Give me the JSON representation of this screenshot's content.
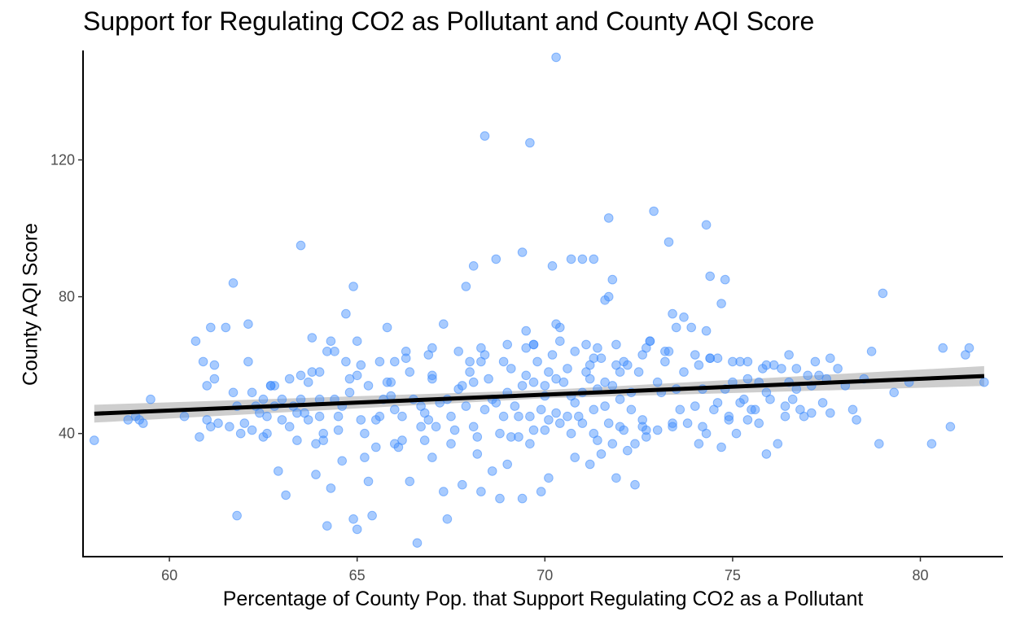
{
  "chart_data": {
    "type": "scatter",
    "title": "Support for Regulating CO2 as Pollutant and County AQI Score",
    "xlabel": "Percentage of County Pop. that Support Regulating CO2 as a Pollutant",
    "ylabel": "County AQI Score",
    "xlim": [
      57.7,
      82.2
    ],
    "ylim": [
      4,
      152
    ],
    "xticks": [
      60,
      65,
      70,
      75,
      80
    ],
    "yticks": [
      40,
      80,
      120
    ],
    "grid": false,
    "point_color": "#3d8bfd",
    "trend_color": "#000000",
    "band_color": "#bdbdbd",
    "trend_line": {
      "x": [
        58.0,
        81.7
      ],
      "y": [
        45.8,
        56.8
      ]
    },
    "confidence_band": {
      "x": [
        58.0,
        70.0,
        81.7
      ],
      "lower": [
        43.2,
        50.3,
        53.9
      ],
      "upper": [
        48.4,
        52.7,
        59.7
      ]
    },
    "points": [
      [
        58.0,
        38
      ],
      [
        58.9,
        44
      ],
      [
        59.1,
        45
      ],
      [
        59.2,
        44
      ],
      [
        59.3,
        43
      ],
      [
        59.5,
        50
      ],
      [
        60.4,
        45
      ],
      [
        60.7,
        67
      ],
      [
        60.8,
        39
      ],
      [
        60.9,
        61
      ],
      [
        61.0,
        54
      ],
      [
        61.0,
        44
      ],
      [
        61.1,
        42
      ],
      [
        61.1,
        71
      ],
      [
        61.2,
        60
      ],
      [
        61.2,
        56
      ],
      [
        61.3,
        43
      ],
      [
        61.5,
        71
      ],
      [
        61.7,
        84
      ],
      [
        61.8,
        48
      ],
      [
        61.8,
        16
      ],
      [
        61.9,
        40
      ],
      [
        62.0,
        43
      ],
      [
        62.1,
        61
      ],
      [
        62.1,
        72
      ],
      [
        62.2,
        52
      ],
      [
        62.2,
        41
      ],
      [
        62.3,
        48
      ],
      [
        62.4,
        46
      ],
      [
        62.5,
        50
      ],
      [
        62.5,
        39
      ],
      [
        62.6,
        45
      ],
      [
        62.7,
        54
      ],
      [
        62.8,
        48
      ],
      [
        62.8,
        54
      ],
      [
        62.9,
        29
      ],
      [
        63.0,
        44
      ],
      [
        63.0,
        50
      ],
      [
        63.1,
        22
      ],
      [
        63.2,
        56
      ],
      [
        63.2,
        42
      ],
      [
        63.3,
        48
      ],
      [
        63.4,
        38
      ],
      [
        63.4,
        46
      ],
      [
        63.5,
        50
      ],
      [
        63.5,
        57
      ],
      [
        63.5,
        95
      ],
      [
        63.6,
        46
      ],
      [
        63.7,
        44
      ],
      [
        63.8,
        58
      ],
      [
        63.8,
        68
      ],
      [
        63.9,
        37
      ],
      [
        64.0,
        58
      ],
      [
        64.0,
        50
      ],
      [
        64.0,
        45
      ],
      [
        64.1,
        38
      ],
      [
        64.1,
        40
      ],
      [
        64.2,
        64
      ],
      [
        64.2,
        13
      ],
      [
        64.3,
        67
      ],
      [
        64.3,
        24
      ],
      [
        64.4,
        50
      ],
      [
        64.4,
        64
      ],
      [
        64.5,
        41
      ],
      [
        64.5,
        45
      ],
      [
        64.6,
        48
      ],
      [
        64.7,
        61
      ],
      [
        64.7,
        75
      ],
      [
        64.8,
        52
      ],
      [
        64.9,
        15
      ],
      [
        64.9,
        83
      ],
      [
        65.0,
        12
      ],
      [
        65.0,
        67
      ],
      [
        65.0,
        57
      ],
      [
        65.1,
        44
      ],
      [
        65.2,
        40
      ],
      [
        65.3,
        54
      ],
      [
        65.3,
        26
      ],
      [
        65.4,
        16
      ],
      [
        65.5,
        44
      ],
      [
        65.5,
        36
      ],
      [
        65.6,
        45
      ],
      [
        65.7,
        50
      ],
      [
        65.8,
        55
      ],
      [
        65.8,
        71
      ],
      [
        65.9,
        51
      ],
      [
        66.0,
        61
      ],
      [
        66.0,
        47
      ],
      [
        66.1,
        36
      ],
      [
        66.2,
        38
      ],
      [
        66.2,
        45
      ],
      [
        66.3,
        64
      ],
      [
        66.4,
        26
      ],
      [
        66.4,
        58
      ],
      [
        66.5,
        50
      ],
      [
        66.6,
        8
      ],
      [
        66.7,
        48
      ],
      [
        66.7,
        42
      ],
      [
        66.8,
        46
      ],
      [
        66.9,
        44
      ],
      [
        67.0,
        33
      ],
      [
        67.0,
        56
      ],
      [
        67.0,
        65
      ],
      [
        67.1,
        42
      ],
      [
        67.2,
        49
      ],
      [
        67.3,
        23
      ],
      [
        67.3,
        72
      ],
      [
        67.4,
        50
      ],
      [
        67.4,
        15
      ],
      [
        67.5,
        45
      ],
      [
        67.6,
        41
      ],
      [
        67.7,
        53
      ],
      [
        67.8,
        25
      ],
      [
        67.8,
        54
      ],
      [
        67.9,
        48
      ],
      [
        68.0,
        61
      ],
      [
        68.1,
        55
      ],
      [
        68.1,
        42
      ],
      [
        68.2,
        34
      ],
      [
        68.3,
        23
      ],
      [
        68.3,
        61
      ],
      [
        68.4,
        47
      ],
      [
        68.4,
        63
      ],
      [
        68.5,
        56
      ],
      [
        68.6,
        29
      ],
      [
        68.6,
        50
      ],
      [
        68.7,
        49
      ],
      [
        68.8,
        21
      ],
      [
        68.9,
        45
      ],
      [
        68.9,
        61
      ],
      [
        69.0,
        52
      ],
      [
        69.0,
        31
      ],
      [
        69.1,
        39
      ],
      [
        69.2,
        48
      ],
      [
        69.3,
        45
      ],
      [
        69.4,
        21
      ],
      [
        69.4,
        54
      ],
      [
        69.5,
        65
      ],
      [
        69.5,
        57
      ],
      [
        69.6,
        45
      ],
      [
        69.6,
        37
      ],
      [
        69.7,
        41
      ],
      [
        69.7,
        55
      ],
      [
        69.8,
        61
      ],
      [
        69.9,
        23
      ],
      [
        69.9,
        47
      ],
      [
        70.0,
        51
      ],
      [
        70.0,
        54
      ],
      [
        70.1,
        44
      ],
      [
        70.1,
        27
      ],
      [
        70.2,
        63
      ],
      [
        70.3,
        56
      ],
      [
        70.3,
        46
      ],
      [
        70.4,
        43
      ],
      [
        70.4,
        71
      ],
      [
        70.5,
        55
      ],
      [
        70.6,
        45
      ],
      [
        70.6,
        59
      ],
      [
        70.7,
        51
      ],
      [
        70.8,
        33
      ],
      [
        70.8,
        49
      ],
      [
        70.9,
        45
      ],
      [
        71.0,
        52
      ],
      [
        71.0,
        43
      ],
      [
        71.1,
        58
      ],
      [
        71.2,
        31
      ],
      [
        71.2,
        56
      ],
      [
        71.3,
        47
      ],
      [
        71.3,
        62
      ],
      [
        71.4,
        38
      ],
      [
        71.4,
        53
      ],
      [
        71.5,
        34
      ],
      [
        71.6,
        48
      ],
      [
        71.6,
        55
      ],
      [
        71.7,
        80
      ],
      [
        71.7,
        43
      ],
      [
        71.8,
        37
      ],
      [
        71.8,
        54
      ],
      [
        71.9,
        27
      ],
      [
        72.0,
        50
      ],
      [
        72.0,
        58
      ],
      [
        72.1,
        41
      ],
      [
        72.1,
        61
      ],
      [
        72.2,
        35
      ],
      [
        72.3,
        47
      ],
      [
        72.3,
        52
      ],
      [
        72.4,
        37
      ],
      [
        72.4,
        25
      ],
      [
        72.5,
        58
      ],
      [
        72.6,
        42
      ],
      [
        72.6,
        44
      ],
      [
        72.7,
        39
      ],
      [
        72.8,
        67
      ],
      [
        72.9,
        105
      ],
      [
        73.0,
        55
      ],
      [
        73.0,
        41
      ],
      [
        73.1,
        52
      ],
      [
        73.2,
        64
      ],
      [
        73.3,
        96
      ],
      [
        73.4,
        42
      ],
      [
        73.5,
        71
      ],
      [
        73.5,
        53
      ],
      [
        73.6,
        47
      ],
      [
        73.7,
        58
      ],
      [
        73.8,
        43
      ],
      [
        73.9,
        71
      ],
      [
        74.0,
        48
      ],
      [
        74.1,
        37
      ],
      [
        74.1,
        60
      ],
      [
        74.2,
        53
      ],
      [
        74.3,
        70
      ],
      [
        74.3,
        40
      ],
      [
        74.4,
        62
      ],
      [
        74.5,
        47
      ],
      [
        74.6,
        49
      ],
      [
        74.7,
        78
      ],
      [
        74.7,
        36
      ],
      [
        74.8,
        53
      ],
      [
        74.9,
        45
      ],
      [
        75.0,
        61
      ],
      [
        75.0,
        55
      ],
      [
        75.1,
        40
      ],
      [
        75.2,
        49
      ],
      [
        75.3,
        50
      ],
      [
        75.4,
        56
      ],
      [
        75.4,
        44
      ],
      [
        75.5,
        47
      ],
      [
        75.6,
        47
      ],
      [
        75.7,
        55
      ],
      [
        75.8,
        59
      ],
      [
        75.9,
        52
      ],
      [
        75.9,
        34
      ],
      [
        76.0,
        50
      ],
      [
        76.1,
        60
      ],
      [
        76.2,
        37
      ],
      [
        76.3,
        59
      ],
      [
        76.4,
        48
      ],
      [
        76.5,
        55
      ],
      [
        76.6,
        50
      ],
      [
        76.7,
        53
      ],
      [
        76.8,
        47
      ],
      [
        76.9,
        45
      ],
      [
        77.0,
        57
      ],
      [
        77.1,
        54
      ],
      [
        77.2,
        61
      ],
      [
        77.3,
        57
      ],
      [
        77.4,
        49
      ],
      [
        77.5,
        56
      ],
      [
        77.6,
        46
      ],
      [
        77.8,
        59
      ],
      [
        78.0,
        54
      ],
      [
        78.2,
        47
      ],
      [
        78.3,
        44
      ],
      [
        78.5,
        56
      ],
      [
        78.7,
        64
      ],
      [
        78.9,
        37
      ],
      [
        79.0,
        81
      ],
      [
        79.3,
        52
      ],
      [
        79.7,
        55
      ],
      [
        80.3,
        37
      ],
      [
        80.6,
        65
      ],
      [
        80.8,
        42
      ],
      [
        81.2,
        63
      ],
      [
        81.3,
        65
      ],
      [
        81.7,
        55
      ],
      [
        61.6,
        42
      ],
      [
        62.6,
        40
      ],
      [
        63.9,
        28
      ],
      [
        64.6,
        32
      ],
      [
        65.2,
        33
      ],
      [
        66.0,
        37
      ],
      [
        66.8,
        38
      ],
      [
        67.5,
        37
      ],
      [
        68.2,
        39
      ],
      [
        68.8,
        40
      ],
      [
        69.3,
        39
      ],
      [
        70.0,
        41
      ],
      [
        70.7,
        40
      ],
      [
        71.3,
        40
      ],
      [
        72.0,
        42
      ],
      [
        72.7,
        41
      ],
      [
        73.4,
        43
      ],
      [
        74.2,
        42
      ],
      [
        74.9,
        44
      ],
      [
        75.7,
        43
      ],
      [
        76.4,
        45
      ],
      [
        77.1,
        46
      ],
      [
        61.7,
        52
      ],
      [
        62.7,
        54
      ],
      [
        63.7,
        55
      ],
      [
        64.8,
        56
      ],
      [
        65.9,
        55
      ],
      [
        67.0,
        57
      ],
      [
        68.0,
        58
      ],
      [
        69.1,
        59
      ],
      [
        70.1,
        58
      ],
      [
        71.2,
        60
      ],
      [
        72.2,
        60
      ],
      [
        73.2,
        61
      ],
      [
        74.4,
        62
      ],
      [
        75.4,
        61
      ],
      [
        76.5,
        63
      ],
      [
        77.6,
        62
      ],
      [
        65.1,
        60
      ],
      [
        65.6,
        61
      ],
      [
        66.3,
        62
      ],
      [
        66.9,
        63
      ],
      [
        67.7,
        64
      ],
      [
        68.3,
        65
      ],
      [
        69.0,
        66
      ],
      [
        69.7,
        66
      ],
      [
        70.4,
        67
      ],
      [
        71.1,
        66
      ],
      [
        71.9,
        66
      ],
      [
        72.7,
        65
      ],
      [
        73.3,
        64
      ],
      [
        74.0,
        63
      ],
      [
        74.6,
        62
      ],
      [
        75.2,
        61
      ],
      [
        75.9,
        60
      ],
      [
        76.7,
        59
      ],
      [
        68.4,
        127
      ],
      [
        69.6,
        125
      ],
      [
        70.3,
        150
      ],
      [
        71.7,
        103
      ],
      [
        74.3,
        101
      ],
      [
        74.4,
        86
      ],
      [
        74.8,
        85
      ],
      [
        71.8,
        85
      ],
      [
        69.4,
        93
      ],
      [
        68.7,
        91
      ],
      [
        70.7,
        91
      ],
      [
        71.0,
        91
      ],
      [
        71.3,
        91
      ],
      [
        68.1,
        89
      ],
      [
        70.2,
        89
      ],
      [
        67.9,
        83
      ],
      [
        71.6,
        79
      ],
      [
        73.4,
        75
      ],
      [
        73.7,
        74
      ],
      [
        72.8,
        67
      ],
      [
        70.3,
        72
      ],
      [
        69.5,
        70
      ],
      [
        69.7,
        66
      ],
      [
        70.8,
        64
      ],
      [
        71.4,
        65
      ],
      [
        71.5,
        62
      ],
      [
        71.9,
        60
      ],
      [
        72.6,
        63
      ]
    ]
  }
}
